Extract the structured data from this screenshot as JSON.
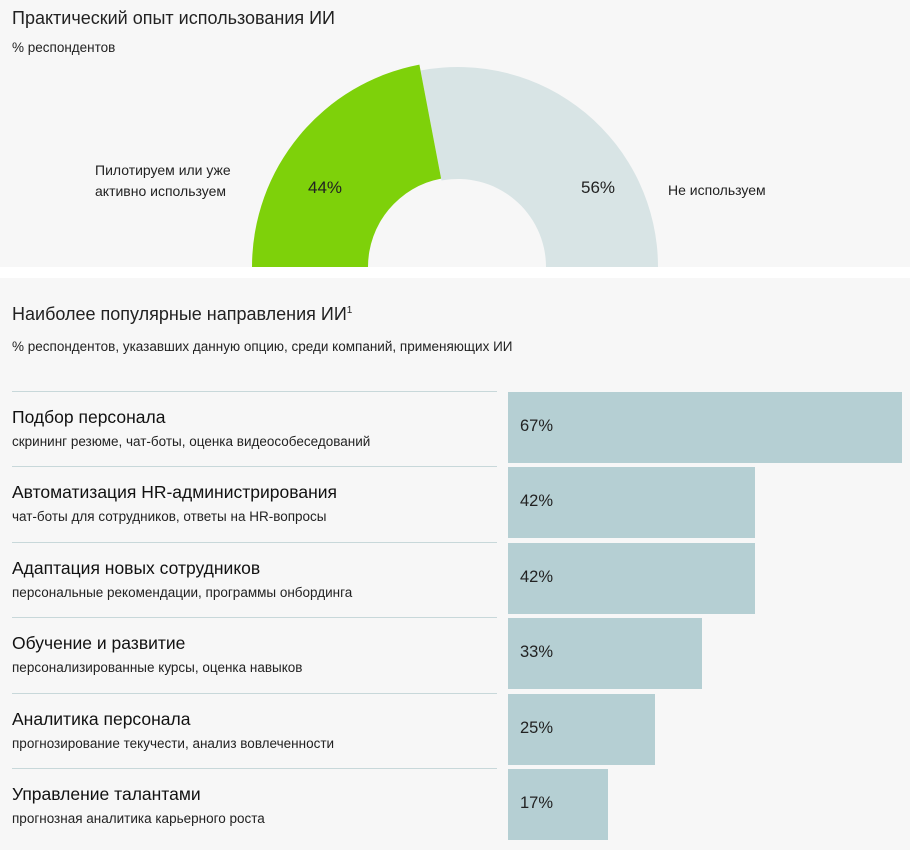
{
  "chart_data": [
    {
      "type": "pie",
      "variant": "half-donut",
      "title": "Практический опыт использования ИИ",
      "subtitle": "% респондентов",
      "slices": [
        {
          "label": "Пилотируем или уже активно используем",
          "value": 44,
          "value_label": "44%",
          "color": "#7ed10a"
        },
        {
          "label": "Не используем",
          "value": 56,
          "value_label": "56%",
          "color": "#d8e4e5"
        }
      ]
    },
    {
      "type": "bar",
      "orientation": "horizontal",
      "title": "Наиболее популярные направления ИИ",
      "title_sup": "1",
      "subtitle": "% респондентов, указавших данную опцию, среди компаний, применяющих ИИ",
      "bar_color": "#b5cfd3",
      "max": 67,
      "rows": [
        {
          "name": "Подбор персонала",
          "desc": "скрининг резюме, чат-боты, оценка видеособеседований",
          "value": 67,
          "label": "67%"
        },
        {
          "name": "Автоматизация HR-администрирования",
          "desc": "чат-боты для сотрудников, ответы на HR-вопросы",
          "value": 42,
          "label": "42%"
        },
        {
          "name": "Адаптация новых сотрудников",
          "desc": "персональные рекомендации, программы онбординга",
          "value": 42,
          "label": "42%"
        },
        {
          "name": "Обучение и развитие",
          "desc": "персонализированные курсы, оценка навыков",
          "value": 33,
          "label": "33%"
        },
        {
          "name": "Аналитика персонала",
          "desc": "прогнозирование текучести, анализ вовлеченности",
          "value": 25,
          "label": "25%"
        },
        {
          "name": "Управление талантами",
          "desc": "прогнозная аналитика карьерного роста",
          "value": 17,
          "label": "17%"
        }
      ]
    }
  ]
}
